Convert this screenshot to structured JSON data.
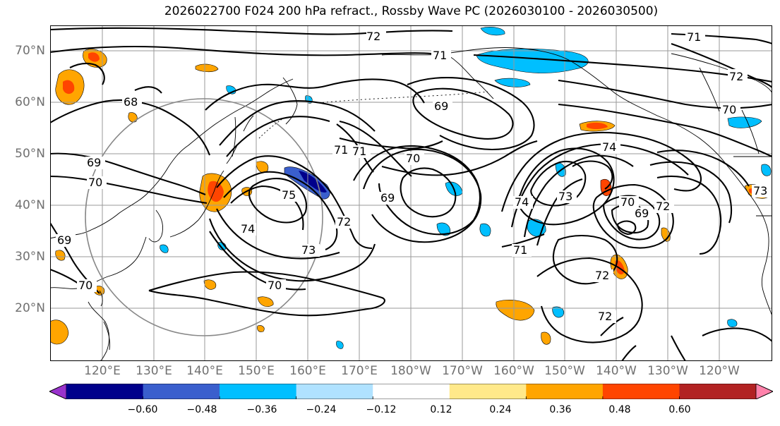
{
  "title": "2026022700 F024 200 hPa refract., Rossby Wave PC (2026030100 - 2026030500)",
  "map": {
    "lat_labels": [
      "70°N",
      "60°N",
      "50°N",
      "40°N",
      "30°N",
      "20°N"
    ],
    "lon_labels": [
      "120°E",
      "130°E",
      "140°E",
      "150°E",
      "160°E",
      "170°E",
      "180°W",
      "170°W",
      "160°W",
      "150°W",
      "140°W",
      "130°W",
      "120°W"
    ],
    "contour_labels": [
      "72",
      "71",
      "71",
      "72",
      "70",
      "68",
      "69",
      "70",
      "69",
      "71",
      "70",
      "69",
      "74",
      "71",
      "75",
      "74",
      "73",
      "72",
      "74",
      "73",
      "70",
      "69",
      "72",
      "71",
      "72",
      "72",
      "73",
      "70",
      "69",
      "70"
    ],
    "colors": {
      "gridline": "#9a9a9a",
      "coast": "#000000",
      "circle": "#888888",
      "positive": [
        "#ffe98a",
        "#ffa500",
        "#ff4500"
      ],
      "negative": [
        "#00bfff",
        "#3a5fcd",
        "#00008b"
      ]
    }
  },
  "colorbar": {
    "tick_labels": [
      "−0.60",
      "−0.48",
      "−0.36",
      "−0.24",
      "−0.12",
      "0.12",
      "0.24",
      "0.36",
      "0.48",
      "0.60"
    ],
    "colors": [
      "#9932cc",
      "#00008b",
      "#3a5fcd",
      "#00bfff",
      "#b0e2ff",
      "#ffffff",
      "#ffe98a",
      "#ffa500",
      "#ff4500",
      "#b22222",
      "#ff82ab"
    ]
  }
}
